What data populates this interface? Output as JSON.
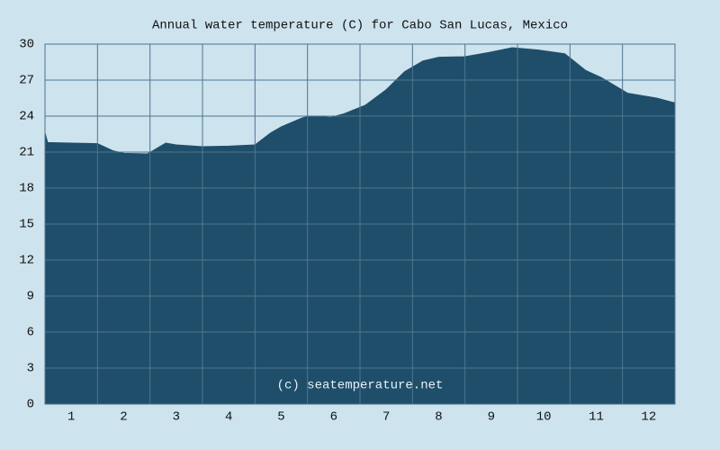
{
  "chart_data": {
    "type": "area",
    "title": "Annual water temperature (C) for Cabo San Lucas, Mexico",
    "watermark": "(c) seatemperature.net",
    "x": [
      0.5,
      0.55,
      1.0,
      1.5,
      1.8,
      2.0,
      2.45,
      2.8,
      3.0,
      3.5,
      4.0,
      4.5,
      4.8,
      5.0,
      5.4,
      5.55,
      5.95,
      6.2,
      6.6,
      7.0,
      7.35,
      7.7,
      8.0,
      8.5,
      8.95,
      9.4,
      9.9,
      10.4,
      10.8,
      11.1,
      11.6,
      12.15,
      12.5
    ],
    "values": [
      22.6,
      21.8,
      21.75,
      21.7,
      21.1,
      20.9,
      20.85,
      21.75,
      21.6,
      21.45,
      21.5,
      21.6,
      22.6,
      23.1,
      23.85,
      24.0,
      23.9,
      24.2,
      24.9,
      26.2,
      27.7,
      28.6,
      28.9,
      28.95,
      29.3,
      29.7,
      29.5,
      29.2,
      27.8,
      27.2,
      25.9,
      25.5,
      25.1
    ],
    "color": "#1f4e6a",
    "xlim": [
      0.5,
      12.5
    ],
    "xticks": [
      1,
      2,
      3,
      4,
      5,
      6,
      7,
      8,
      9,
      10,
      11,
      12
    ],
    "ylim": [
      0,
      30
    ],
    "yticks": [
      0,
      3,
      6,
      9,
      12,
      15,
      18,
      21,
      24,
      27,
      30
    ],
    "grid": true
  }
}
